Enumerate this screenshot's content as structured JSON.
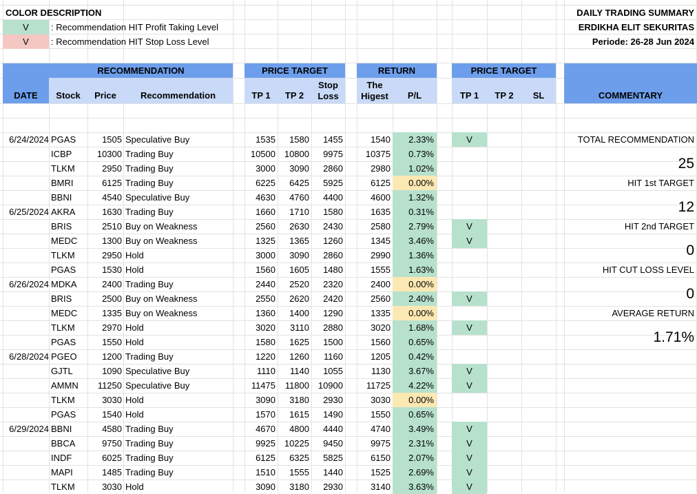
{
  "legend": {
    "title": "COLOR DESCRIPTION",
    "items": [
      {
        "mark": "V",
        "text": ": Recommendation HIT Profit Taking Level",
        "color": "#b7e1cd"
      },
      {
        "mark": "V",
        "text": ": Recommendation HIT Stop Loss Level",
        "color": "#f4c7c3"
      }
    ]
  },
  "summary_header": {
    "title": "DAILY TRADING SUMMARY",
    "company": "ERDIKHA ELIT SEKURITAS",
    "period": "Periode:  26-28 Jun 2024"
  },
  "headers": {
    "recommendation": "RECOMMENDATION",
    "price_target": "PRICE TARGET",
    "return": "RETURN",
    "price_target2": "PRICE TARGET",
    "date": "DATE",
    "stock": "Stock",
    "price": "Price",
    "recommendation_col": "Recommendation",
    "tp1": "TP 1",
    "tp2": "TP 2",
    "stop_loss_1": "Stop",
    "stop_loss_2": "Loss",
    "highest_1": "The",
    "highest_2": "Higest",
    "pl": "P/L",
    "hit_tp1": "TP 1",
    "hit_tp2": "TP 2",
    "hit_sl": "SL",
    "commentary": "COMMENTARY"
  },
  "rows": [
    {
      "date": "6/24/2024",
      "stock": "PGAS",
      "price": "1505",
      "rec": "Speculative Buy",
      "tp1": "1535",
      "tp2": "1580",
      "sl": "1455",
      "high": "1540",
      "pl": "2.33%",
      "pl_color": "green",
      "hit_tp1": "V",
      "hit_tp2": "",
      "hit_sl": ""
    },
    {
      "date": "",
      "stock": "ICBP",
      "price": "10300",
      "rec": "Trading Buy",
      "tp1": "10500",
      "tp2": "10800",
      "sl": "9975",
      "high": "10375",
      "pl": "0.73%",
      "pl_color": "green",
      "hit_tp1": "",
      "hit_tp2": "",
      "hit_sl": ""
    },
    {
      "date": "",
      "stock": "TLKM",
      "price": "2950",
      "rec": "Trading Buy",
      "tp1": "3000",
      "tp2": "3090",
      "sl": "2860",
      "high": "2980",
      "pl": "1.02%",
      "pl_color": "green",
      "hit_tp1": "",
      "hit_tp2": "",
      "hit_sl": ""
    },
    {
      "date": "",
      "stock": "BMRI",
      "price": "6125",
      "rec": "Trading Buy",
      "tp1": "6225",
      "tp2": "6425",
      "sl": "5925",
      "high": "6125",
      "pl": "0.00%",
      "pl_color": "yellow",
      "hit_tp1": "",
      "hit_tp2": "",
      "hit_sl": ""
    },
    {
      "date": "",
      "stock": "BBNI",
      "price": "4540",
      "rec": "Speculative Buy",
      "tp1": "4630",
      "tp2": "4760",
      "sl": "4400",
      "high": "4600",
      "pl": "1.32%",
      "pl_color": "green",
      "hit_tp1": "",
      "hit_tp2": "",
      "hit_sl": ""
    },
    {
      "date": "6/25/2024",
      "stock": "AKRA",
      "price": "1630",
      "rec": "Trading Buy",
      "tp1": "1660",
      "tp2": "1710",
      "sl": "1580",
      "high": "1635",
      "pl": "0.31%",
      "pl_color": "green",
      "hit_tp1": "",
      "hit_tp2": "",
      "hit_sl": ""
    },
    {
      "date": "",
      "stock": "BRIS",
      "price": "2510",
      "rec": "Buy on Weakness",
      "tp1": "2560",
      "tp2": "2630",
      "sl": "2430",
      "high": "2580",
      "pl": "2.79%",
      "pl_color": "green",
      "hit_tp1": "V",
      "hit_tp2": "",
      "hit_sl": ""
    },
    {
      "date": "",
      "stock": "MEDC",
      "price": "1300",
      "rec": "Buy on Weakness",
      "tp1": "1325",
      "tp2": "1365",
      "sl": "1260",
      "high": "1345",
      "pl": "3.46%",
      "pl_color": "green",
      "hit_tp1": "V",
      "hit_tp2": "",
      "hit_sl": ""
    },
    {
      "date": "",
      "stock": "TLKM",
      "price": "2950",
      "rec": "Hold",
      "tp1": "3000",
      "tp2": "3090",
      "sl": "2860",
      "high": "2990",
      "pl": "1.36%",
      "pl_color": "green",
      "hit_tp1": "",
      "hit_tp2": "",
      "hit_sl": ""
    },
    {
      "date": "",
      "stock": "PGAS",
      "price": "1530",
      "rec": "Hold",
      "tp1": "1560",
      "tp2": "1605",
      "sl": "1480",
      "high": "1555",
      "pl": "1.63%",
      "pl_color": "green",
      "hit_tp1": "",
      "hit_tp2": "",
      "hit_sl": ""
    },
    {
      "date": "6/26/2024",
      "stock": "MDKA",
      "price": "2400",
      "rec": "Trading Buy",
      "tp1": "2440",
      "tp2": "2520",
      "sl": "2320",
      "high": "2400",
      "pl": "0.00%",
      "pl_color": "yellow",
      "hit_tp1": "",
      "hit_tp2": "",
      "hit_sl": ""
    },
    {
      "date": "",
      "stock": "BRIS",
      "price": "2500",
      "rec": "Buy on Weakness",
      "tp1": "2550",
      "tp2": "2620",
      "sl": "2420",
      "high": "2560",
      "pl": "2.40%",
      "pl_color": "green",
      "hit_tp1": "V",
      "hit_tp2": "",
      "hit_sl": ""
    },
    {
      "date": "",
      "stock": "MEDC",
      "price": "1335",
      "rec": "Buy on Weakness",
      "tp1": "1360",
      "tp2": "1400",
      "sl": "1290",
      "high": "1335",
      "pl": "0.00%",
      "pl_color": "yellow",
      "hit_tp1": "",
      "hit_tp2": "",
      "hit_sl": ""
    },
    {
      "date": "",
      "stock": "TLKM",
      "price": "2970",
      "rec": "Hold",
      "tp1": "3020",
      "tp2": "3110",
      "sl": "2880",
      "high": "3020",
      "pl": "1.68%",
      "pl_color": "green",
      "hit_tp1": "V",
      "hit_tp2": "",
      "hit_sl": ""
    },
    {
      "date": "",
      "stock": "PGAS",
      "price": "1550",
      "rec": "Hold",
      "tp1": "1580",
      "tp2": "1625",
      "sl": "1500",
      "high": "1560",
      "pl": "0.65%",
      "pl_color": "green",
      "hit_tp1": "",
      "hit_tp2": "",
      "hit_sl": ""
    },
    {
      "date": "6/28/2024",
      "stock": "PGEO",
      "price": "1200",
      "rec": "Trading Buy",
      "tp1": "1220",
      "tp2": "1260",
      "sl": "1160",
      "high": "1205",
      "pl": "0.42%",
      "pl_color": "green",
      "hit_tp1": "",
      "hit_tp2": "",
      "hit_sl": ""
    },
    {
      "date": "",
      "stock": "GJTL",
      "price": "1090",
      "rec": "Speculative Buy",
      "tp1": "1110",
      "tp2": "1140",
      "sl": "1055",
      "high": "1130",
      "pl": "3.67%",
      "pl_color": "green",
      "hit_tp1": "V",
      "hit_tp2": "",
      "hit_sl": ""
    },
    {
      "date": "",
      "stock": "AMMN",
      "price": "11250",
      "rec": "Speculative Buy",
      "tp1": "11475",
      "tp2": "11800",
      "sl": "10900",
      "high": "11725",
      "pl": "4.22%",
      "pl_color": "green",
      "hit_tp1": "V",
      "hit_tp2": "",
      "hit_sl": ""
    },
    {
      "date": "",
      "stock": "TLKM",
      "price": "3030",
      "rec": "Hold",
      "tp1": "3090",
      "tp2": "3180",
      "sl": "2930",
      "high": "3030",
      "pl": "0.00%",
      "pl_color": "yellow",
      "hit_tp1": "",
      "hit_tp2": "",
      "hit_sl": ""
    },
    {
      "date": "",
      "stock": "PGAS",
      "price": "1540",
      "rec": "Hold",
      "tp1": "1570",
      "tp2": "1615",
      "sl": "1490",
      "high": "1550",
      "pl": "0.65%",
      "pl_color": "green",
      "hit_tp1": "",
      "hit_tp2": "",
      "hit_sl": ""
    },
    {
      "date": "6/29/2024",
      "stock": "BBNI",
      "price": "4580",
      "rec": "Trading Buy",
      "tp1": "4670",
      "tp2": "4800",
      "sl": "4440",
      "high": "4740",
      "pl": "3.49%",
      "pl_color": "green",
      "hit_tp1": "V",
      "hit_tp2": "",
      "hit_sl": ""
    },
    {
      "date": "",
      "stock": "BBCA",
      "price": "9750",
      "rec": "Trading Buy",
      "tp1": "9925",
      "tp2": "10225",
      "sl": "9450",
      "high": "9975",
      "pl": "2.31%",
      "pl_color": "green",
      "hit_tp1": "V",
      "hit_tp2": "",
      "hit_sl": ""
    },
    {
      "date": "",
      "stock": "INDF",
      "price": "6025",
      "rec": "Trading Buy",
      "tp1": "6125",
      "tp2": "6325",
      "sl": "5825",
      "high": "6150",
      "pl": "2.07%",
      "pl_color": "green",
      "hit_tp1": "V",
      "hit_tp2": "",
      "hit_sl": ""
    },
    {
      "date": "",
      "stock": "MAPI",
      "price": "1485",
      "rec": "Trading Buy",
      "tp1": "1510",
      "tp2": "1555",
      "sl": "1440",
      "high": "1525",
      "pl": "2.69%",
      "pl_color": "green",
      "hit_tp1": "V",
      "hit_tp2": "",
      "hit_sl": ""
    },
    {
      "date": "",
      "stock": "TLKM",
      "price": "3030",
      "rec": "Hold",
      "tp1": "3090",
      "tp2": "3180",
      "sl": "2930",
      "high": "3140",
      "pl": "3.63%",
      "pl_color": "green",
      "hit_tp1": "V",
      "hit_tp2": "",
      "hit_sl": ""
    }
  ],
  "commentary": {
    "total_label": "TOTAL RECOMMENDATION",
    "total_value": "25",
    "hit1_label": "HIT 1st TARGET",
    "hit1_value": "12",
    "hit2_label": "HIT 2nd TARGET",
    "hit2_value": "0",
    "cut_label": "HIT CUT LOSS LEVEL",
    "cut_value": "0",
    "avg_label": "AVERAGE RETURN",
    "avg_value": "1.71%"
  },
  "colors": {
    "header": "#6d9eeb",
    "subheader": "#c9daf8",
    "hit": "#b7e1cd",
    "stop": "#f4c7c3",
    "neutral": "#fce8b2"
  }
}
